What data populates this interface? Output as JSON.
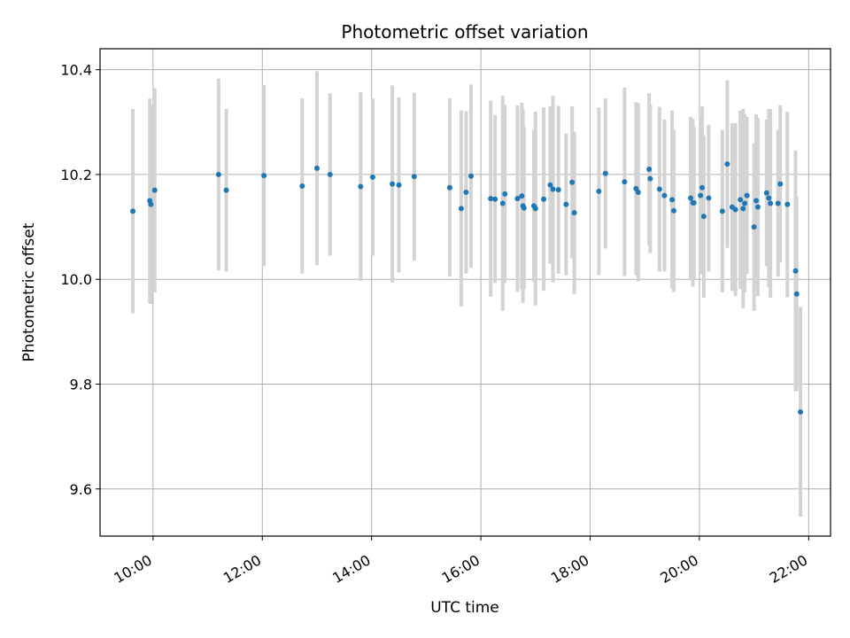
{
  "chart_data": {
    "type": "scatter",
    "title": "Photometric offset variation",
    "xlabel": "UTC time",
    "ylabel": "Photometric offset",
    "x_ticks": [
      "10:00",
      "12:00",
      "14:00",
      "16:00",
      "18:00",
      "20:00",
      "22:00"
    ],
    "x_tick_values": [
      10,
      12,
      14,
      16,
      18,
      20,
      22
    ],
    "y_ticks": [
      "9.6",
      "9.8",
      "10.0",
      "10.2",
      "10.4"
    ],
    "y_tick_values": [
      9.6,
      9.8,
      10.0,
      10.2,
      10.4
    ],
    "xlim": [
      9.03,
      22.4
    ],
    "ylim": [
      9.51,
      10.44
    ],
    "grid": true,
    "marker_color": "#1f77b4",
    "errorbar_color": "#d3d3d3",
    "series": [
      {
        "x": [
          9.63,
          9.94,
          9.96,
          10.03,
          11.2,
          11.34,
          12.03,
          12.73,
          13.0,
          13.24,
          13.8,
          14.02,
          14.38,
          14.5,
          14.78,
          15.43,
          15.64,
          15.73,
          15.82,
          16.18,
          16.26,
          16.4,
          16.44,
          16.67,
          16.75,
          16.77,
          16.79,
          16.97,
          17.0,
          17.15,
          17.27,
          17.32,
          17.42,
          17.56,
          17.67,
          17.71,
          18.16,
          18.28,
          18.63,
          18.84,
          18.88,
          19.08,
          19.1,
          19.27,
          19.36,
          19.5,
          19.53,
          19.84,
          19.88,
          19.9,
          20.02,
          20.05,
          20.08,
          20.17,
          20.42,
          20.51,
          20.6,
          20.66,
          20.75,
          20.8,
          20.83,
          20.87,
          21.0,
          21.04,
          21.07,
          21.23,
          21.27,
          21.3,
          21.44,
          21.48,
          21.61,
          21.76,
          21.78,
          21.85
        ],
        "y": [
          10.13,
          10.15,
          10.143,
          10.17,
          10.2,
          10.17,
          10.198,
          10.178,
          10.212,
          10.2,
          10.177,
          10.195,
          10.182,
          10.18,
          10.196,
          10.175,
          10.135,
          10.166,
          10.197,
          10.154,
          10.153,
          10.145,
          10.163,
          10.154,
          10.159,
          10.14,
          10.136,
          10.14,
          10.135,
          10.153,
          10.18,
          10.172,
          10.171,
          10.143,
          10.185,
          10.127,
          10.168,
          10.202,
          10.186,
          10.173,
          10.166,
          10.21,
          10.192,
          10.172,
          10.16,
          10.152,
          10.131,
          10.155,
          10.146,
          10.146,
          10.16,
          10.175,
          10.12,
          10.155,
          10.13,
          10.22,
          10.138,
          10.133,
          10.152,
          10.135,
          10.145,
          10.16,
          10.1,
          10.15,
          10.138,
          10.165,
          10.155,
          10.145,
          10.145,
          10.182,
          10.143,
          10.016,
          9.972,
          9.747
        ],
        "yerr": [
          0.195,
          0.195,
          0.19,
          0.195,
          0.183,
          0.155,
          0.173,
          0.167,
          0.185,
          0.155,
          0.18,
          0.15,
          0.188,
          0.167,
          0.16,
          0.17,
          0.187,
          0.155,
          0.175,
          0.187,
          0.16,
          0.205,
          0.17,
          0.178,
          0.178,
          0.185,
          0.155,
          0.145,
          0.185,
          0.175,
          0.15,
          0.178,
          0.16,
          0.135,
          0.145,
          0.155,
          0.16,
          0.143,
          0.18,
          0.165,
          0.17,
          0.145,
          0.142,
          0.157,
          0.145,
          0.17,
          0.155,
          0.155,
          0.16,
          0.145,
          0.15,
          0.155,
          0.155,
          0.14,
          0.155,
          0.16,
          0.16,
          0.165,
          0.17,
          0.19,
          0.17,
          0.15,
          0.16,
          0.165,
          0.17,
          0.14,
          0.17,
          0.18,
          0.14,
          0.15,
          0.177,
          0.23,
          0.185,
          0.2
        ]
      }
    ]
  }
}
